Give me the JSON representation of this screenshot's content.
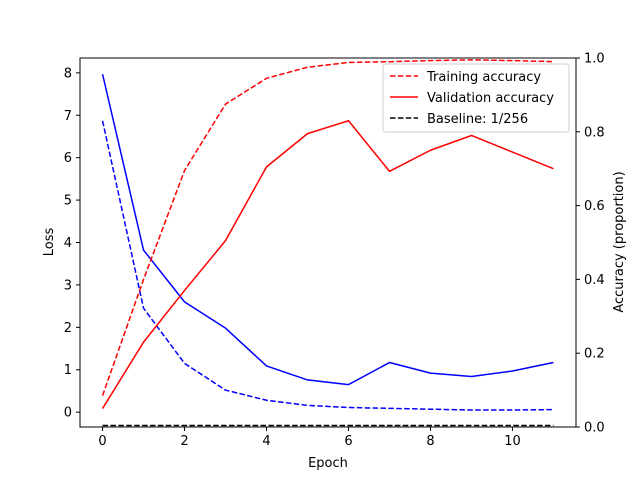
{
  "chart_data": {
    "type": "line",
    "x": [
      0,
      1,
      2,
      3,
      4,
      5,
      6,
      7,
      8,
      9,
      10,
      11
    ],
    "xlabel": "Epoch",
    "ylabel_left": "Loss",
    "ylabel_right": "Accuracy (proportion)",
    "xlim": [
      -0.55,
      11.55
    ],
    "ylim_left": [
      -0.35,
      8.35
    ],
    "ylim_right": [
      0.0,
      1.0
    ],
    "xticks": [
      0,
      2,
      4,
      6,
      8,
      10
    ],
    "yticks_left": [
      0,
      1,
      2,
      3,
      4,
      5,
      6,
      7,
      8
    ],
    "yticks_right": [
      0.0,
      0.2,
      0.4,
      0.6,
      0.8,
      1.0
    ],
    "grid": false,
    "legend_position": "top-right",
    "loss_series": [
      {
        "key": "train-loss",
        "axis": "left",
        "color": "#0000ff",
        "dash": true,
        "values": [
          6.87,
          2.45,
          1.15,
          0.52,
          0.28,
          0.16,
          0.11,
          0.09,
          0.07,
          0.05,
          0.05,
          0.06
        ]
      },
      {
        "key": "val-loss",
        "axis": "left",
        "color": "#0000ff",
        "dash": false,
        "values": [
          7.97,
          3.82,
          2.6,
          1.98,
          1.09,
          0.76,
          0.65,
          1.17,
          0.92,
          0.84,
          0.97,
          1.17
        ]
      }
    ],
    "accuracy_series": [
      {
        "name": "Training accuracy",
        "axis": "right",
        "color": "#ff0000",
        "dash": true,
        "values": [
          0.085,
          0.4,
          0.695,
          0.875,
          0.945,
          0.975,
          0.988,
          0.99,
          0.993,
          0.995,
          0.993,
          0.99
        ]
      },
      {
        "name": "Validation accuracy",
        "axis": "right",
        "color": "#ff0000",
        "dash": false,
        "values": [
          0.05,
          0.23,
          0.37,
          0.505,
          0.705,
          0.795,
          0.83,
          0.693,
          0.75,
          0.79,
          0.745,
          0.7
        ]
      },
      {
        "name": "Baseline: 1/256",
        "axis": "right",
        "color": "#000000",
        "dash": true,
        "values": [
          0.0039,
          0.0039,
          0.0039,
          0.0039,
          0.0039,
          0.0039,
          0.0039,
          0.0039,
          0.0039,
          0.0039,
          0.0039,
          0.0039
        ]
      }
    ],
    "legend": [
      "Training accuracy",
      "Validation accuracy",
      "Baseline: 1/256"
    ]
  }
}
